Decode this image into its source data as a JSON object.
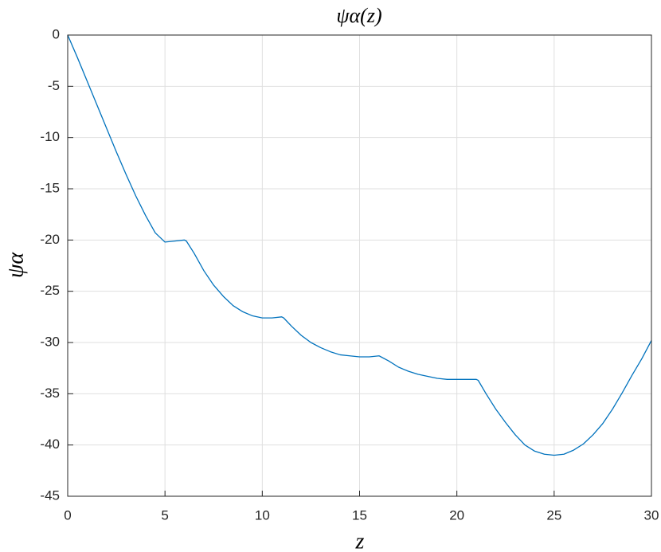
{
  "chart_data": {
    "type": "line",
    "title": "ψα(z)",
    "xlabel": "z",
    "ylabel": "ψα",
    "x": [
      0,
      0.5,
      1,
      1.5,
      2,
      2.5,
      3,
      3.5,
      4,
      4.5,
      5,
      5.5,
      6,
      6.1,
      6.5,
      7,
      7.5,
      8,
      8.5,
      9,
      9.5,
      10,
      10.5,
      11,
      11.1,
      11.5,
      12,
      12.5,
      13,
      13.5,
      14,
      14.5,
      15,
      15.5,
      16,
      16.1,
      16.5,
      17,
      17.5,
      18,
      18.5,
      19,
      19.5,
      20,
      20.5,
      21,
      21.1,
      21.5,
      22,
      22.5,
      23,
      23.5,
      24,
      24.5,
      25,
      25.5,
      26,
      26.5,
      27,
      27.5,
      28,
      28.5,
      29,
      29.5,
      30
    ],
    "series": [
      {
        "color": "#0072bd",
        "values": [
          0,
          -2.2,
          -4.5,
          -6.8,
          -9.1,
          -11.4,
          -13.6,
          -15.7,
          -17.6,
          -19.3,
          -20.2,
          -20.1,
          -20.0,
          -20.1,
          -21.3,
          -23.0,
          -24.4,
          -25.5,
          -26.4,
          -27.0,
          -27.4,
          -27.6,
          -27.6,
          -27.5,
          -27.6,
          -28.4,
          -29.3,
          -30.0,
          -30.5,
          -30.9,
          -31.2,
          -31.3,
          -31.4,
          -31.4,
          -31.3,
          -31.4,
          -31.8,
          -32.4,
          -32.8,
          -33.1,
          -33.3,
          -33.5,
          -33.6,
          -33.6,
          -33.6,
          -33.6,
          -33.7,
          -35.0,
          -36.5,
          -37.8,
          -39.0,
          -40.0,
          -40.6,
          -40.9,
          -41.0,
          -40.9,
          -40.5,
          -39.9,
          -39.0,
          -37.9,
          -36.5,
          -34.9,
          -33.2,
          -31.6,
          -29.8
        ]
      }
    ],
    "xlim": [
      0,
      30
    ],
    "xticks": [
      0,
      5,
      10,
      15,
      20,
      25,
      30
    ],
    "ylim": [
      -45,
      0
    ],
    "yticks": [
      -45,
      -40,
      -35,
      -30,
      -25,
      -20,
      -15,
      -10,
      -5,
      0
    ],
    "grid": true
  }
}
